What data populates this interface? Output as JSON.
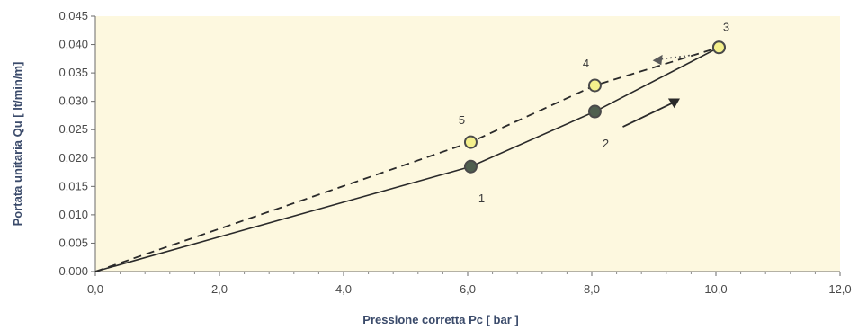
{
  "chart_data": {
    "type": "line",
    "xlabel": "Pressione corretta Pc [ bar ]",
    "ylabel": "Portata unitaria Qu [ lt/min/m]",
    "xlim": [
      0,
      12
    ],
    "ylim": [
      0,
      0.045
    ],
    "x_ticks": [
      "0,0",
      "2,0",
      "4,0",
      "6,0",
      "8,0",
      "10,0",
      "12,0"
    ],
    "y_ticks": [
      "0,000",
      "0,005",
      "0,010",
      "0,015",
      "0,020",
      "0,025",
      "0,030",
      "0,035",
      "0,040",
      "0,045"
    ],
    "series": [
      {
        "line_style": "solid",
        "marker_fill": "#4f5f4f",
        "x": [
          0,
          6.05,
          8.05,
          10.05
        ],
        "y": [
          0,
          0.0185,
          0.0282,
          0.0395
        ]
      },
      {
        "line_style": "dashed",
        "marker_fill": "#f4f08c",
        "x": [
          0,
          6.05,
          8.05,
          10.05
        ],
        "y": [
          0,
          0.0228,
          0.0328,
          0.0395
        ]
      }
    ],
    "point_labels": [
      {
        "text": "1",
        "x": 6.05,
        "y": 0.0185,
        "pos": "below"
      },
      {
        "text": "2",
        "x": 8.05,
        "y": 0.0282,
        "pos": "below"
      },
      {
        "text": "3",
        "x": 10.05,
        "y": 0.0395,
        "pos": "above"
      },
      {
        "text": "4",
        "x": 8.05,
        "y": 0.0328,
        "pos": "above"
      },
      {
        "text": "5",
        "x": 6.05,
        "y": 0.0228,
        "pos": "above"
      }
    ],
    "arrows": [
      {
        "direction": "up",
        "style": "solid"
      },
      {
        "direction": "down",
        "style": "dotted"
      }
    ],
    "colors": {
      "plot_background": "#fdf8df",
      "line": "#2a2a2a",
      "axis_title": "#3a4a6a"
    },
    "grid": false,
    "legend": "none"
  }
}
